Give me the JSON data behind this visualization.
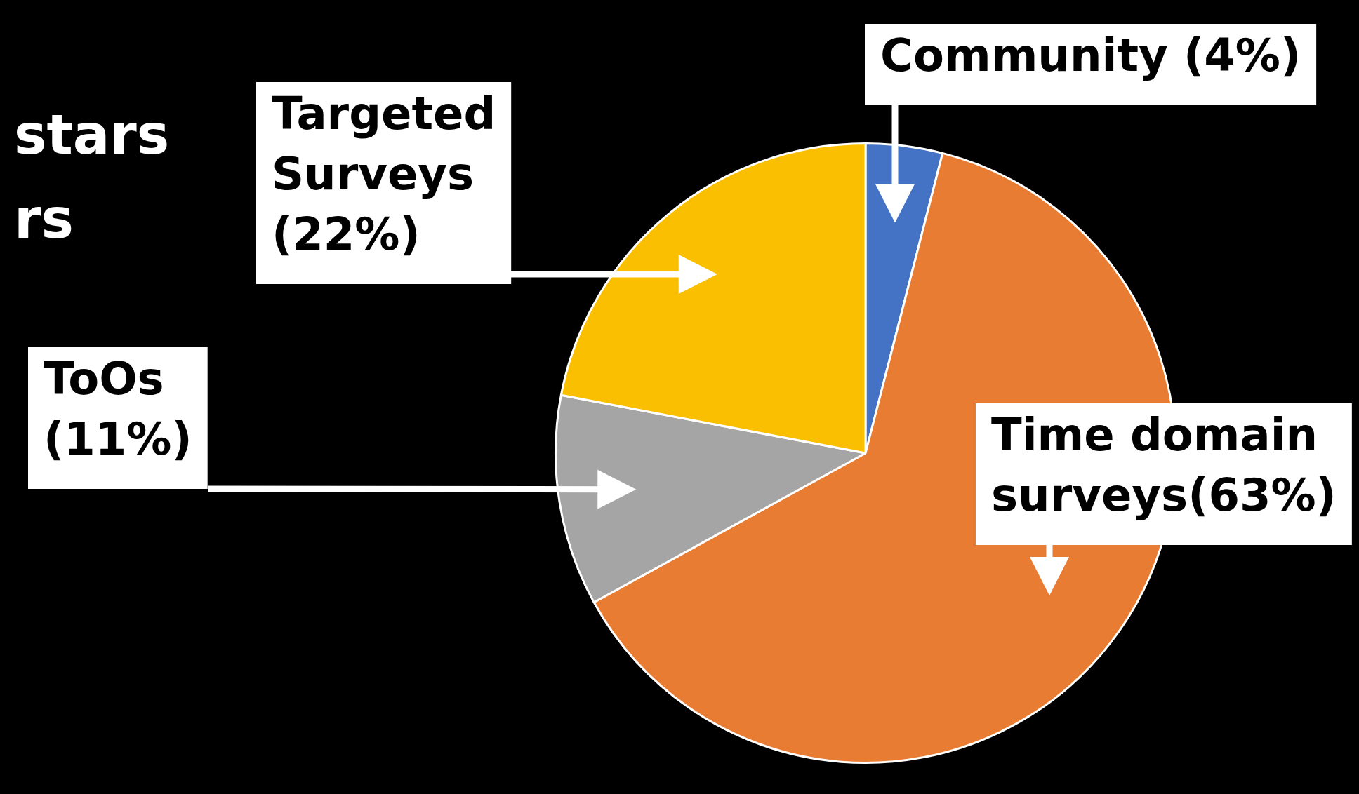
{
  "chart_data": {
    "type": "pie",
    "categories": [
      "Community (4%)",
      "Time domain surveys(63%)",
      "ToOs (11%)",
      "Targeted Surveys (22%)"
    ],
    "values": [
      4,
      63,
      11,
      22
    ],
    "colors": [
      "#4472c4",
      "#e97c33",
      "#a5a5a5",
      "#fabf00"
    ],
    "annotations": [
      "stars",
      "rs"
    ],
    "legend": false
  }
}
